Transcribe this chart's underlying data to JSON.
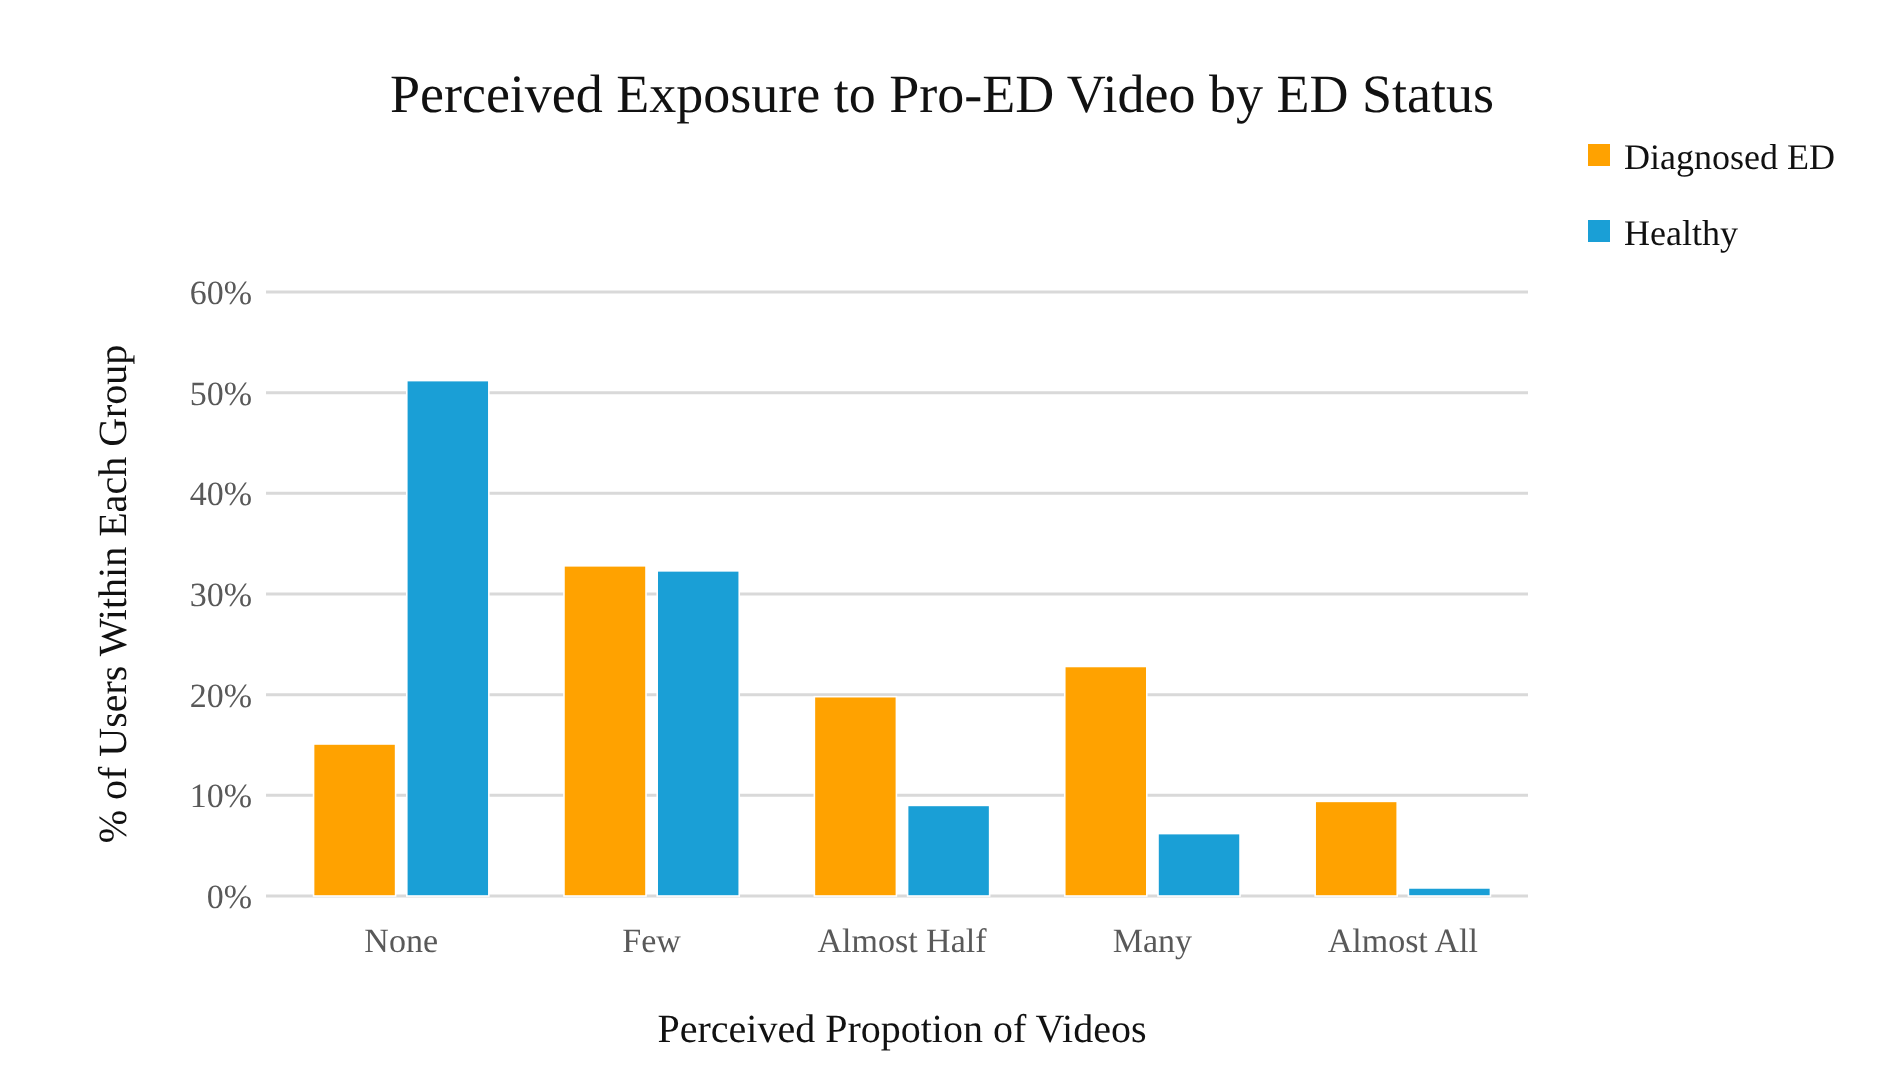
{
  "chart_data": {
    "type": "bar",
    "title": "Perceived Exposure to Pro-ED Video by ED Status",
    "xlabel": "Perceived Propotion of Videos",
    "ylabel": "% of Users Within Each Group",
    "categories": [
      "None",
      "Few",
      "Almost Half",
      "Many",
      "Almost All"
    ],
    "series": [
      {
        "name": "Diagnosed ED",
        "color": "#ffa200",
        "values": [
          15.1,
          32.8,
          19.8,
          22.8,
          9.4
        ]
      },
      {
        "name": "Healthy",
        "color": "#1a9fd6",
        "values": [
          51.2,
          32.3,
          9.0,
          6.2,
          0.8
        ]
      }
    ],
    "ylim": [
      0,
      60
    ],
    "yticks": [
      {
        "value": 0,
        "label": "0%"
      },
      {
        "value": 10,
        "label": "10%"
      },
      {
        "value": 20,
        "label": "20%"
      },
      {
        "value": 30,
        "label": "30%"
      },
      {
        "value": 40,
        "label": "40%"
      },
      {
        "value": 50,
        "label": "50%"
      },
      {
        "value": 60,
        "label": "60%"
      }
    ],
    "grid": "y",
    "legend": "top right"
  }
}
